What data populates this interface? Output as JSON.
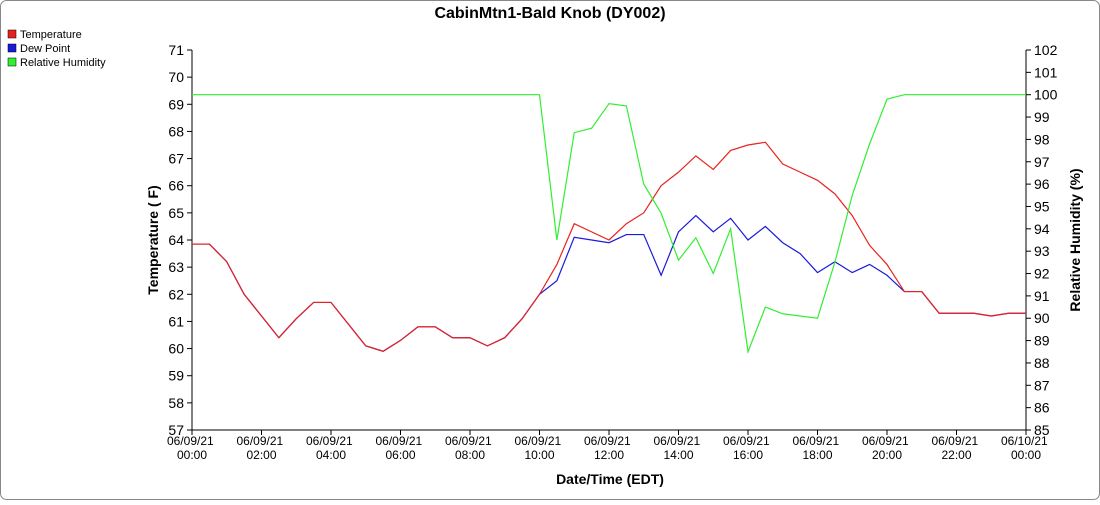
{
  "chart_data": {
    "type": "line",
    "title": "CabinMtn1-Bald Knob (DY002)",
    "x_label": "Date/Time (EDT)",
    "y_label": "Temperature ( F)",
    "y2_label": "Relative Humidity (%)",
    "x": [
      0,
      0.5,
      1,
      1.5,
      2,
      2.5,
      3,
      3.5,
      4,
      4.5,
      5,
      5.5,
      6,
      6.5,
      7,
      7.5,
      8,
      8.5,
      9,
      9.5,
      10,
      10.5,
      11,
      11.5,
      12,
      12.5,
      13,
      13.5,
      14,
      14.5,
      15,
      15.5,
      16,
      16.5,
      17,
      17.5,
      18,
      18.5,
      19,
      19.5,
      20,
      20.5,
      21,
      21.5,
      22,
      22.5,
      23,
      23.5,
      24
    ],
    "series": [
      {
        "name": "Temperature",
        "color": "#e8231f",
        "values": [
          63.85,
          63.85,
          63.2,
          62.0,
          61.2,
          60.4,
          61.1,
          61.7,
          61.7,
          60.9,
          60.1,
          59.9,
          60.3,
          60.8,
          60.8,
          60.4,
          60.4,
          60.1,
          60.4,
          61.1,
          62.0,
          63.1,
          64.6,
          64.3,
          64.0,
          64.6,
          65.0,
          66.0,
          66.5,
          67.1,
          66.6,
          67.3,
          67.5,
          67.6,
          66.8,
          66.5,
          66.2,
          65.7,
          64.9,
          63.8,
          63.1,
          62.1,
          62.1,
          61.3,
          61.3,
          61.3,
          61.2,
          61.3,
          61.3
        ]
      },
      {
        "name": "Dew Point",
        "color": "#1a1adb",
        "values": [
          63.85,
          63.85,
          63.2,
          62.0,
          61.2,
          60.4,
          61.1,
          61.7,
          61.7,
          60.9,
          60.1,
          59.9,
          60.3,
          60.8,
          60.8,
          60.4,
          60.4,
          60.1,
          60.4,
          61.1,
          62.0,
          62.5,
          64.1,
          64.0,
          63.9,
          64.2,
          64.2,
          62.7,
          64.3,
          64.9,
          64.3,
          64.8,
          64.0,
          64.5,
          63.9,
          63.5,
          62.8,
          63.2,
          62.8,
          63.1,
          62.7,
          62.1,
          62.1,
          61.3,
          61.3,
          61.3,
          61.2,
          61.3,
          61.3
        ]
      },
      {
        "name": "Relative Humidity",
        "color": "#33ee33",
        "axis": "y2",
        "values": [
          100,
          100,
          100,
          100,
          100,
          100,
          100,
          100,
          100,
          100,
          100,
          100,
          100,
          100,
          100,
          100,
          100,
          100,
          100,
          100,
          100,
          93.5,
          98.3,
          98.5,
          99.6,
          99.5,
          96.0,
          94.7,
          92.6,
          93.6,
          92.0,
          94.0,
          88.5,
          90.5,
          90.2,
          90.1,
          90.0,
          92.5,
          95.5,
          97.8,
          99.8,
          100,
          100,
          100,
          100,
          100,
          100,
          100,
          100
        ]
      }
    ],
    "xlim": [
      0,
      24
    ],
    "xticks": [
      {
        "value": 0,
        "label": "06/09/21 00:00"
      },
      {
        "value": 2,
        "label": "06/09/21 02:00"
      },
      {
        "value": 4,
        "label": "06/09/21 04:00"
      },
      {
        "value": 6,
        "label": "06/09/21 06:00"
      },
      {
        "value": 8,
        "label": "06/09/21 08:00"
      },
      {
        "value": 10,
        "label": "06/09/21 10:00"
      },
      {
        "value": 12,
        "label": "06/09/21 12:00"
      },
      {
        "value": 14,
        "label": "06/09/21 14:00"
      },
      {
        "value": 16,
        "label": "06/09/21 16:00"
      },
      {
        "value": 18,
        "label": "06/09/21 18:00"
      },
      {
        "value": 20,
        "label": "06/09/21 20:00"
      },
      {
        "value": 22,
        "label": "06/09/21 22:00"
      },
      {
        "value": 24,
        "label": "06/10/21 00:00"
      }
    ],
    "ylim": [
      57,
      71
    ],
    "yticks": [
      57,
      58,
      59,
      60,
      61,
      62,
      63,
      64,
      65,
      66,
      67,
      68,
      69,
      70,
      71
    ],
    "y2lim": [
      85,
      102
    ],
    "y2ticks": [
      85,
      86,
      87,
      88,
      89,
      90,
      91,
      92,
      93,
      94,
      95,
      96,
      97,
      98,
      99,
      100,
      101,
      102
    ],
    "legend": "top-left"
  }
}
